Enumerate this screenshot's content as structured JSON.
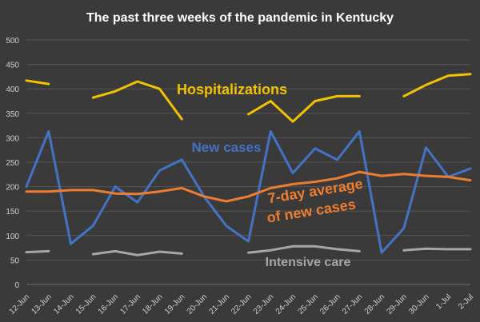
{
  "chart_data": {
    "type": "line",
    "title": "The past three weeks of the pandemic in Kentucky",
    "xlabel": "",
    "ylabel": "",
    "ylim": [
      0,
      500
    ],
    "yticks": [
      0,
      50,
      100,
      150,
      200,
      250,
      300,
      350,
      400,
      450,
      500
    ],
    "grid": true,
    "categories": [
      "12-Jun",
      "13-Jun",
      "14-Jun",
      "15-Jun",
      "16-Jun",
      "17-Jun",
      "18-Jun",
      "19-Jun",
      "20-Jun",
      "21-Jun",
      "22-Jun",
      "23-Jun",
      "24-Jun",
      "25-Jun",
      "26-Jun",
      "27-Jun",
      "28-Jun",
      "29-Jun",
      "30-Jun",
      "1-Jul",
      "2-Jul"
    ],
    "series": [
      {
        "name": "Hospitalizations",
        "color": "#f2c200",
        "values": [
          417,
          410,
          null,
          382,
          395,
          415,
          400,
          338,
          null,
          null,
          348,
          375,
          333,
          375,
          385,
          385,
          null,
          385,
          408,
          427,
          430
        ]
      },
      {
        "name": "New cases",
        "color": "#4472c4",
        "values": [
          200,
          313,
          83,
          120,
          200,
          168,
          233,
          255,
          180,
          120,
          88,
          313,
          228,
          278,
          255,
          313,
          65,
          115,
          280,
          220,
          237
        ]
      },
      {
        "name": "7-day average of new cases",
        "color": "#ed7d31",
        "values": [
          190,
          190,
          193,
          193,
          186,
          185,
          190,
          197,
          180,
          170,
          180,
          197,
          205,
          210,
          217,
          230,
          222,
          226,
          222,
          220,
          213
        ]
      },
      {
        "name": "Intensive care",
        "color": "#a6a6a6",
        "values": [
          66,
          68,
          null,
          62,
          68,
          60,
          67,
          63,
          null,
          null,
          65,
          70,
          78,
          78,
          72,
          68,
          null,
          70,
          73,
          72,
          72
        ]
      }
    ],
    "annotations": [
      {
        "text": "Hospitalizations",
        "color": "#f2c200"
      },
      {
        "text": "New cases",
        "color": "#4472c4"
      },
      {
        "text": "7-day average",
        "color": "#ed7d31"
      },
      {
        "text": "of new cases",
        "color": "#ed7d31"
      },
      {
        "text": "Intensive care",
        "color": "#a6a6a6"
      }
    ]
  }
}
